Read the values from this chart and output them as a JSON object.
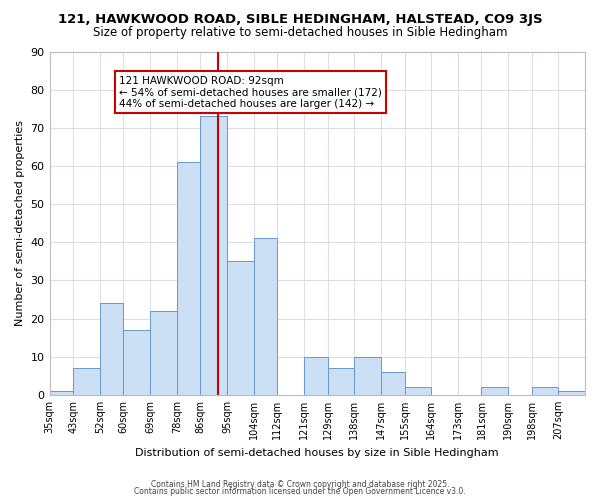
{
  "title": "121, HAWKWOOD ROAD, SIBLE HEDINGHAM, HALSTEAD, CO9 3JS",
  "subtitle": "Size of property relative to semi-detached houses in Sible Hedingham",
  "xlabel": "Distribution of semi-detached houses by size in Sible Hedingham",
  "ylabel": "Number of semi-detached properties",
  "bins": [
    35,
    43,
    52,
    60,
    69,
    78,
    86,
    95,
    104,
    112,
    121,
    129,
    138,
    147,
    155,
    164,
    173,
    181,
    190,
    198,
    207
  ],
  "counts": [
    1,
    7,
    24,
    17,
    22,
    61,
    73,
    35,
    41,
    0,
    10,
    7,
    10,
    6,
    2,
    0,
    0,
    2,
    0,
    2,
    1
  ],
  "bar_color": "#cce0f5",
  "bar_edge_color": "#6699cc",
  "property_size": 92,
  "vline_color": "#cc0000",
  "annotation_line1": "121 HAWKWOOD ROAD: 92sqm",
  "annotation_line2": "← 54% of semi-detached houses are smaller (172)",
  "annotation_line3": "44% of semi-detached houses are larger (142) →",
  "annotation_box_color": "#ffffff",
  "annotation_box_edge": "#cc0000",
  "ylim": [
    0,
    90
  ],
  "yticks": [
    0,
    10,
    20,
    30,
    40,
    50,
    60,
    70,
    80,
    90
  ],
  "bg_color": "#ffffff",
  "grid_color": "#ddddee",
  "footer1": "Contains HM Land Registry data © Crown copyright and database right 2025.",
  "footer2": "Contains public sector information licensed under the Open Government Licence v3.0.",
  "tick_labels": [
    "35sqm",
    "43sqm",
    "52sqm",
    "60sqm",
    "69sqm",
    "78sqm",
    "86sqm",
    "95sqm",
    "104sqm",
    "112sqm",
    "121sqm",
    "129sqm",
    "138sqm",
    "147sqm",
    "155sqm",
    "164sqm",
    "173sqm",
    "181sqm",
    "190sqm",
    "198sqm",
    "207sqm"
  ]
}
